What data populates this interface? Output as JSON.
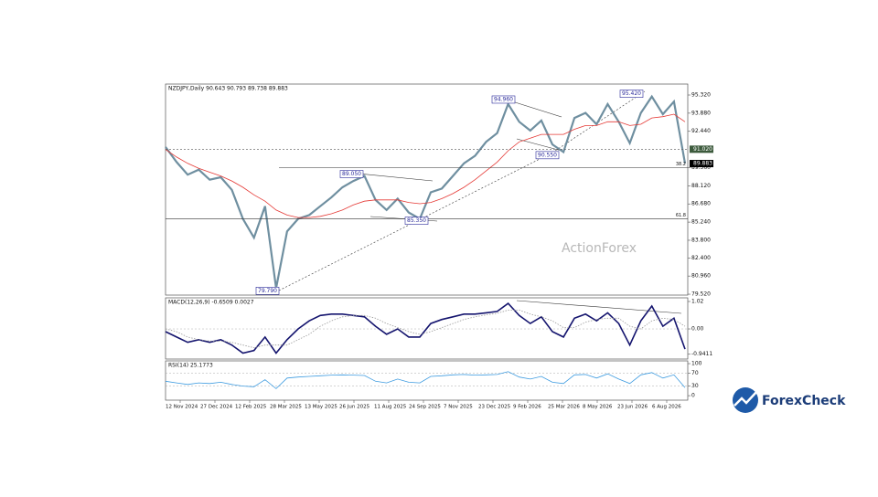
{
  "chart_data": [
    {
      "type": "line",
      "title": "NZDJPY,Daily  90.643 90.793 89.738 89.883",
      "ylim": [
        79.45,
        96.19
      ],
      "yticks": [
        {
          "value": 95.32,
          "label": "95.320"
        },
        {
          "value": 93.88,
          "label": "93.880"
        },
        {
          "value": 92.44,
          "label": "92.440"
        },
        {
          "value": 89.56,
          "label": "89.560"
        },
        {
          "value": 88.12,
          "label": "88.120"
        },
        {
          "value": 86.68,
          "label": "86.680"
        },
        {
          "value": 85.24,
          "label": "85.240"
        },
        {
          "value": 83.8,
          "label": "83.800"
        },
        {
          "value": 82.4,
          "label": "82.400"
        },
        {
          "value": 80.96,
          "label": "80.960"
        },
        {
          "value": 79.52,
          "label": "79.520"
        }
      ],
      "series": [
        {
          "name": "NZDJPY",
          "color": "#6f8fa0",
          "values": [
            91.2,
            90.0,
            89.0,
            89.4,
            88.6,
            88.8,
            87.8,
            85.5,
            84.0,
            86.5,
            80.0,
            84.5,
            85.5,
            85.8,
            86.5,
            87.2,
            88.0,
            88.5,
            88.9,
            87.0,
            86.2,
            87.1,
            86.0,
            85.5,
            87.6,
            87.9,
            88.9,
            89.9,
            90.5,
            91.6,
            92.3,
            94.6,
            93.2,
            92.5,
            93.3,
            91.4,
            90.8,
            93.5,
            93.9,
            93.0,
            94.6,
            93.2,
            91.5,
            93.9,
            95.2,
            93.8,
            94.8,
            89.9
          ]
        },
        {
          "name": "MA",
          "color": "#e53935",
          "values": [
            91.0,
            90.4,
            89.9,
            89.5,
            89.2,
            88.9,
            88.5,
            88.0,
            87.4,
            86.9,
            86.2,
            85.8,
            85.6,
            85.6,
            85.7,
            85.9,
            86.2,
            86.6,
            86.9,
            87.0,
            87.0,
            87.0,
            86.8,
            86.7,
            86.8,
            87.1,
            87.5,
            88.0,
            88.6,
            89.3,
            90.0,
            90.9,
            91.6,
            91.9,
            92.2,
            92.2,
            92.2,
            92.6,
            92.9,
            92.9,
            93.2,
            93.2,
            92.9,
            93.0,
            93.5,
            93.6,
            93.8,
            93.2
          ]
        }
      ],
      "annotations": [
        {
          "value": 79.79,
          "label": "79.790"
        },
        {
          "value": 89.05,
          "label": "89.050"
        },
        {
          "value": 85.35,
          "label": "85.350"
        },
        {
          "value": 94.96,
          "label": "94.960"
        },
        {
          "value": 90.55,
          "label": "90.550"
        },
        {
          "value": 95.42,
          "label": "95.420"
        }
      ],
      "levels": [
        {
          "value": 91.02,
          "label": "91.020",
          "style": "dotted"
        },
        {
          "value": 89.883,
          "label": "89.883",
          "style": "current"
        }
      ],
      "fib_levels": [
        {
          "name": "38.2",
          "value": 89.55
        },
        {
          "name": "61.8",
          "value": 85.5
        }
      ],
      "watermark": "ActionForex"
    },
    {
      "type": "line",
      "title": "MACD(12,26,9) -0.6509 0.0027",
      "ylim": [
        -1.12,
        1.156
      ],
      "yticks": [
        1.02,
        {
          "value": 0,
          "label": "0.00"
        },
        -0.9411
      ],
      "series": [
        {
          "name": "MACD",
          "color": "#14146e",
          "values": [
            -0.1,
            -0.3,
            -0.5,
            -0.4,
            -0.5,
            -0.4,
            -0.6,
            -0.9,
            -0.8,
            -0.3,
            -0.9,
            -0.4,
            0.0,
            0.3,
            0.5,
            0.55,
            0.55,
            0.5,
            0.45,
            0.1,
            -0.2,
            0.0,
            -0.3,
            -0.3,
            0.2,
            0.35,
            0.45,
            0.55,
            0.55,
            0.6,
            0.65,
            0.95,
            0.5,
            0.2,
            0.45,
            -0.1,
            -0.3,
            0.4,
            0.55,
            0.3,
            0.6,
            0.2,
            -0.6,
            0.3,
            0.85,
            0.1,
            0.4,
            -0.75
          ]
        },
        {
          "name": "Signal",
          "color": "#9a9a9a",
          "values": [
            0.0,
            -0.1,
            -0.3,
            -0.4,
            -0.45,
            -0.45,
            -0.5,
            -0.6,
            -0.7,
            -0.6,
            -0.6,
            -0.6,
            -0.4,
            -0.2,
            0.1,
            0.3,
            0.45,
            0.5,
            0.5,
            0.4,
            0.2,
            0.05,
            -0.1,
            -0.2,
            -0.1,
            0.05,
            0.2,
            0.35,
            0.45,
            0.52,
            0.58,
            0.7,
            0.7,
            0.55,
            0.45,
            0.3,
            0.05,
            0.05,
            0.25,
            0.35,
            0.4,
            0.4,
            0.1,
            0.0,
            0.3,
            0.4,
            0.35,
            0.1
          ]
        }
      ]
    },
    {
      "type": "line",
      "title": "RSI(14) 25.1773",
      "ylim": [
        -14,
        108.6
      ],
      "yticks": [
        100,
        70,
        30,
        0
      ],
      "series": [
        {
          "name": "RSI",
          "color": "#3d9be0",
          "values": [
            45,
            40,
            35,
            40,
            38,
            42,
            35,
            30,
            28,
            50,
            22,
            55,
            58,
            60,
            62,
            64,
            65,
            64,
            63,
            45,
            40,
            52,
            42,
            40,
            60,
            62,
            65,
            66,
            64,
            65,
            66,
            75,
            58,
            52,
            60,
            42,
            38,
            65,
            66,
            55,
            68,
            52,
            38,
            65,
            72,
            55,
            65,
            25
          ]
        }
      ]
    }
  ],
  "x_axis_labels": [
    "12 Nov 2024",
    "27 Dec 2024",
    "12 Feb 2025",
    "28 Mar 2025",
    "13 May 2025",
    "26 Jun 2025",
    "11 Aug 2025",
    "24 Sep 2025",
    "7 Nov 2025",
    "23 Dec 2025",
    "9 Feb 2026",
    "25 Mar 2026",
    "8 May 2026",
    "23 Jun 2026",
    "6 Aug 2026"
  ],
  "logo": "ForexCheck"
}
